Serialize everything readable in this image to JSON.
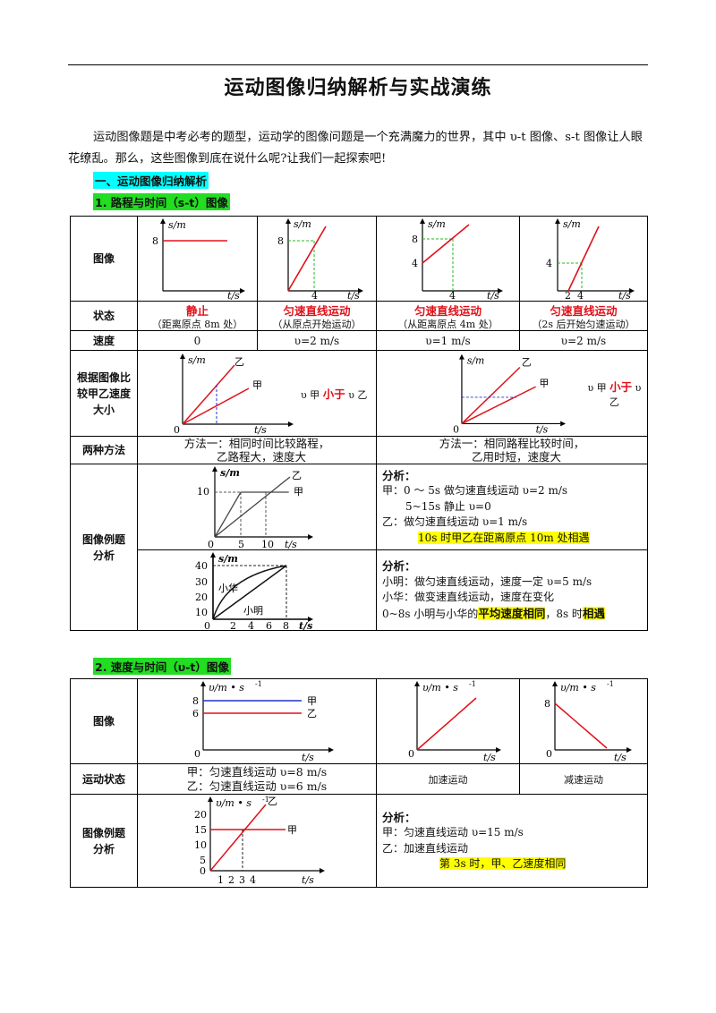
{
  "title": "运动图像归纳解析与实战演练",
  "intro": "运动图像题是中考必考的题型，运动学的图像问题是一个充满魔力的世界，其中 υ-t 图像、s-t 图像让人眼花缭乱。那么，这些图像到底在说什么呢?让我们一起探索吧!",
  "section1": "一、运动图像归纳解析",
  "sub1": "1. 路程与时间（s-t）图像",
  "sub2": "2. 速度与时间（υ-t）图像",
  "axes": {
    "s": "s/m",
    "t": "t/s",
    "sbold": "s/m",
    "tbold": "t/s",
    "v": "υ/m • s",
    "vexp": "-1",
    "zero": "0"
  },
  "table1": {
    "row_image": "图像",
    "row_state": "状态",
    "row_speed": "速度",
    "row_compare": "根据图像比较甲乙速度大小",
    "row_methods": "两种方法",
    "row_examples": "图像例题分析",
    "graph_ticks": {
      "g1": [
        "8"
      ],
      "g2": [
        "8",
        "4"
      ],
      "g3": [
        "8",
        "4",
        "4"
      ],
      "g4": [
        "4",
        "2",
        "4"
      ]
    },
    "states": [
      {
        "main": "静止",
        "note": "（距离原点 8m 处）"
      },
      {
        "main": "匀速直线运动",
        "note": "（从原点开始运动）"
      },
      {
        "main": "匀速直线运动",
        "note": "（从距离原点 4m 处）"
      },
      {
        "main": "匀速直线运动",
        "note": "（2s 后开始匀速运动）"
      }
    ],
    "speeds": [
      "0",
      "υ=2 m/s",
      "υ=1 m/s",
      "υ=2 m/s"
    ],
    "compare": {
      "jia": "甲",
      "yi": "乙",
      "left_prefix": "υ 甲",
      "left_relation": "小于",
      "left_suffix": "υ 乙",
      "right_prefix": "υ 甲",
      "right_relation": "小于",
      "right_suffix": "υ 乙"
    },
    "methods": {
      "m1_line1": "方法一：相同时间比较路程，",
      "m1_line2": "乙路程大，速度大",
      "m2_line1": "方法一：相同路程比较时间，",
      "m2_line2": "乙用时短，速度大"
    },
    "example1": {
      "graph_ticks_y": [
        "10"
      ],
      "graph_ticks_x": [
        "0",
        "5",
        "10"
      ],
      "jia": "甲",
      "yi": "乙",
      "heading": "分析：",
      "lines": [
        "甲：0 ～ 5s 做匀速直线运动   υ=2 m/s",
        "5~15s 静止                υ=0",
        "乙：做匀速直线运动         υ=1 m/s"
      ],
      "highlight": "10s 时甲乙在距离原点 10m 处相遇"
    },
    "example2": {
      "graph_ticks_y": [
        "40",
        "30",
        "20",
        "10"
      ],
      "graph_ticks_x": [
        "0",
        "2",
        "4",
        "6",
        "8"
      ],
      "xiaohua": "小华",
      "xiaoming": "小明",
      "heading": "分析：",
      "lines": [
        "小明：做匀速直线运动，速度一定   υ=5 m/s",
        "小华：做变速直线运动，速度在变化"
      ],
      "last_prefix": "0~8s 小明与小华的",
      "last_hl1": "平均速度相同",
      "last_mid": "，8s 时",
      "last_hl2": "相遇"
    }
  },
  "table2": {
    "row_image": "图像",
    "row_state": "运动状态",
    "row_example": "图像例题分析",
    "graph1_ticks": [
      "8",
      "6"
    ],
    "jia": "甲",
    "yi": "乙",
    "graph3_ticks": [
      "8"
    ],
    "state1_line1": "甲：匀速直线运动   υ=8 m/s",
    "state1_line2": "乙：匀速直线运动   υ=6 m/s",
    "state2": "加速运动",
    "state3": "减速运动",
    "example": {
      "graph_ticks_y": [
        "20",
        "15",
        "10",
        "5",
        "0"
      ],
      "graph_ticks_x": [
        "1",
        "2",
        "3",
        "4"
      ],
      "heading": "分析：",
      "lines": [
        "甲：匀速直线运动   υ=15 m/s",
        "乙：加速直线运动"
      ],
      "highlight": "第 3s 时，甲、乙速度相同"
    }
  }
}
